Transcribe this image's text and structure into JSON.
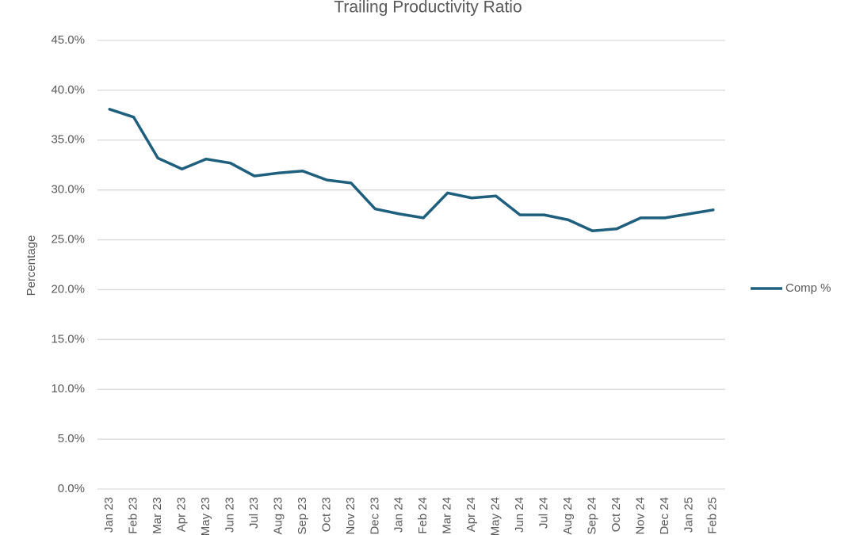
{
  "chart_data": {
    "type": "line",
    "title": "Trailing Productivity Ratio",
    "y_label": "Percentage",
    "categories": [
      "Jan 23",
      "Feb 23",
      "Mar 23",
      "Apr 23",
      "May 23",
      "Jun 23",
      "Jul 23",
      "Aug 23",
      "Sep 23",
      "Oct 23",
      "Nov 23",
      "Dec 23",
      "Jan 24",
      "Feb 24",
      "Mar 24",
      "Apr 24",
      "May 24",
      "Jun 24",
      "Jul 24",
      "Aug 24",
      "Sep 24",
      "Oct 24",
      "Nov 24",
      "Dec 24",
      "Jan 25",
      "Feb 25"
    ],
    "series": [
      {
        "name": "Comp %",
        "color": "#1f5f7e",
        "values": [
          38.1,
          37.3,
          33.2,
          32.1,
          33.1,
          32.7,
          31.4,
          31.7,
          31.9,
          31.0,
          30.7,
          28.1,
          27.6,
          27.2,
          29.7,
          29.2,
          29.4,
          27.5,
          27.5,
          27.0,
          25.9,
          26.1,
          27.2,
          27.2,
          27.6,
          28.0
        ]
      }
    ],
    "ylim": [
      0,
      45
    ],
    "yticks": [
      {
        "value": 0,
        "label": "0.0%"
      },
      {
        "value": 5,
        "label": "5.0%"
      },
      {
        "value": 10,
        "label": "10.0%"
      },
      {
        "value": 15,
        "label": "15.0%"
      },
      {
        "value": 20,
        "label": "20.0%"
      },
      {
        "value": 25,
        "label": "25.0%"
      },
      {
        "value": 30,
        "label": "30.0%"
      },
      {
        "value": 35,
        "label": "35.0%"
      },
      {
        "value": 40,
        "label": "40.0%"
      },
      {
        "value": 45,
        "label": "45.0%"
      }
    ],
    "grid": true,
    "legend": "right"
  }
}
